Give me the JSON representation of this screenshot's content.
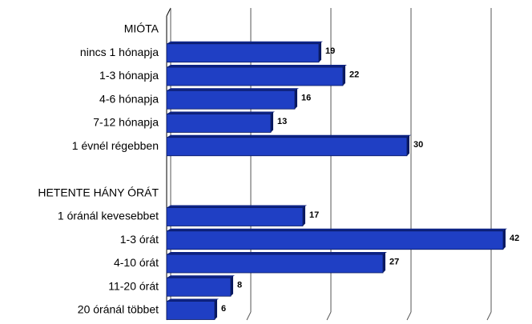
{
  "chart_data": {
    "type": "bar",
    "orientation": "horizontal",
    "categories": [
      "MIÓTA",
      "nincs 1 hónapja",
      "1-3 hónapja",
      "4-6 hónapja",
      "7-12 hónapja",
      "1 évnél régebben",
      null,
      "HETENTE HÁNY ÓRÁT",
      "1 óránál kevesebbet",
      "1-3 órát",
      "4-10 órát",
      "11-20 órát",
      "20 óránál többet"
    ],
    "values": [
      null,
      19,
      22,
      16,
      13,
      30,
      null,
      null,
      17,
      42,
      27,
      8,
      6
    ],
    "color": "#1f3fc4",
    "xlim": [
      0,
      45
    ],
    "xticks": [
      0,
      10,
      20,
      30,
      40
    ],
    "grid": true
  }
}
